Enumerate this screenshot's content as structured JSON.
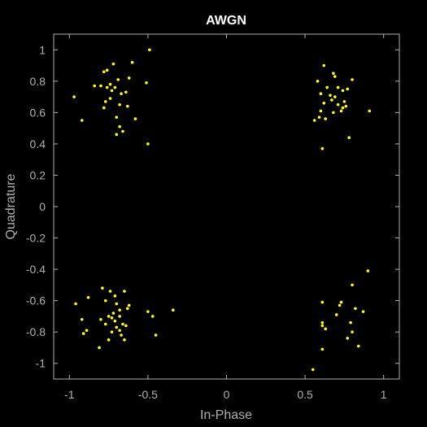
{
  "chart_data": {
    "type": "scatter",
    "title": "AWGN",
    "xlabel": "In-Phase",
    "ylabel": "Quadrature",
    "xlim": [
      -1.1,
      1.1
    ],
    "ylim": [
      -1.1,
      1.1
    ],
    "xticks": [
      -1,
      -0.5,
      0,
      0.5,
      1
    ],
    "xtick_labels": [
      "-1",
      "-0.5",
      "0",
      "0.5",
      "1"
    ],
    "yticks": [
      1,
      0.8,
      0.6,
      0.4,
      0.2,
      0,
      -0.2,
      -0.4,
      -0.6,
      -0.8,
      -1
    ],
    "ytick_labels": [
      "1",
      "0.8",
      "0.6",
      "0.4",
      "0.2",
      "0",
      "-0.2",
      "-0.4",
      "-0.6",
      "-0.8",
      "-1"
    ],
    "grid": false,
    "colors": {
      "background": "#000000",
      "axes": "#b0b0b0",
      "marker": "#ffff00",
      "title": "#ffffff"
    },
    "points": [
      [
        -0.49,
        1.0
      ],
      [
        -0.72,
        0.91
      ],
      [
        -0.6,
        0.92
      ],
      [
        -0.76,
        0.87
      ],
      [
        -0.78,
        0.86
      ],
      [
        -0.62,
        0.82
      ],
      [
        -0.69,
        0.81
      ],
      [
        -0.51,
        0.79
      ],
      [
        -0.74,
        0.78
      ],
      [
        -0.84,
        0.77
      ],
      [
        -0.8,
        0.77
      ],
      [
        -0.76,
        0.76
      ],
      [
        -0.71,
        0.76
      ],
      [
        -0.73,
        0.74
      ],
      [
        -0.64,
        0.73
      ],
      [
        -0.67,
        0.72
      ],
      [
        -0.97,
        0.7
      ],
      [
        -0.74,
        0.69
      ],
      [
        -0.77,
        0.67
      ],
      [
        -0.68,
        0.65
      ],
      [
        -0.63,
        0.64
      ],
      [
        -0.78,
        0.63
      ],
      [
        -0.7,
        0.57
      ],
      [
        -0.58,
        0.56
      ],
      [
        -0.92,
        0.55
      ],
      [
        -0.68,
        0.51
      ],
      [
        -0.66,
        0.48
      ],
      [
        -0.7,
        0.46
      ],
      [
        -0.5,
        0.4
      ],
      [
        0.62,
        0.9
      ],
      [
        0.68,
        0.85
      ],
      [
        0.69,
        0.83
      ],
      [
        0.8,
        0.81
      ],
      [
        0.58,
        0.8
      ],
      [
        0.64,
        0.76
      ],
      [
        0.71,
        0.76
      ],
      [
        0.77,
        0.75
      ],
      [
        0.74,
        0.74
      ],
      [
        0.6,
        0.72
      ],
      [
        0.66,
        0.71
      ],
      [
        0.69,
        0.7
      ],
      [
        0.67,
        0.68
      ],
      [
        0.75,
        0.67
      ],
      [
        0.62,
        0.66
      ],
      [
        0.71,
        0.65
      ],
      [
        0.76,
        0.64
      ],
      [
        0.74,
        0.63
      ],
      [
        0.73,
        0.61
      ],
      [
        0.6,
        0.61
      ],
      [
        0.91,
        0.61
      ],
      [
        0.68,
        0.6
      ],
      [
        0.59,
        0.57
      ],
      [
        0.63,
        0.56
      ],
      [
        0.56,
        0.55
      ],
      [
        0.78,
        0.44
      ],
      [
        0.61,
        0.37
      ],
      [
        0.9,
        -0.41
      ],
      [
        0.8,
        -0.5
      ],
      [
        0.61,
        -0.61
      ],
      [
        0.73,
        -0.61
      ],
      [
        0.72,
        -0.63
      ],
      [
        0.82,
        -0.65
      ],
      [
        0.87,
        -0.67
      ],
      [
        0.7,
        -0.69
      ],
      [
        0.61,
        -0.74
      ],
      [
        0.79,
        -0.74
      ],
      [
        0.61,
        -0.76
      ],
      [
        0.63,
        -0.78
      ],
      [
        0.8,
        -0.8
      ],
      [
        0.77,
        -0.84
      ],
      [
        0.84,
        -0.89
      ],
      [
        0.61,
        -0.91
      ],
      [
        0.55,
        -1.04
      ],
      [
        -0.79,
        -0.52
      ],
      [
        -0.74,
        -0.54
      ],
      [
        -0.65,
        -0.54
      ],
      [
        -0.88,
        -0.58
      ],
      [
        -0.71,
        -0.57
      ],
      [
        -0.77,
        -0.6
      ],
      [
        -0.96,
        -0.62
      ],
      [
        -0.7,
        -0.62
      ],
      [
        -0.62,
        -0.63
      ],
      [
        -0.63,
        -0.65
      ],
      [
        -0.34,
        -0.66
      ],
      [
        -0.68,
        -0.66
      ],
      [
        -0.72,
        -0.68
      ],
      [
        -0.5,
        -0.67
      ],
      [
        -0.47,
        -0.7
      ],
      [
        -0.68,
        -0.7
      ],
      [
        -0.75,
        -0.7
      ],
      [
        -0.73,
        -0.71
      ],
      [
        -0.92,
        -0.72
      ],
      [
        -0.8,
        -0.72
      ],
      [
        -0.71,
        -0.73
      ],
      [
        -0.77,
        -0.75
      ],
      [
        -0.66,
        -0.75
      ],
      [
        -0.64,
        -0.76
      ],
      [
        -0.7,
        -0.77
      ],
      [
        -0.89,
        -0.79
      ],
      [
        -0.68,
        -0.79
      ],
      [
        -0.73,
        -0.8
      ],
      [
        -0.91,
        -0.81
      ],
      [
        -0.45,
        -0.82
      ],
      [
        -0.67,
        -0.82
      ],
      [
        -0.75,
        -0.85
      ],
      [
        -0.65,
        -0.85
      ],
      [
        -0.81,
        -0.9
      ]
    ]
  }
}
